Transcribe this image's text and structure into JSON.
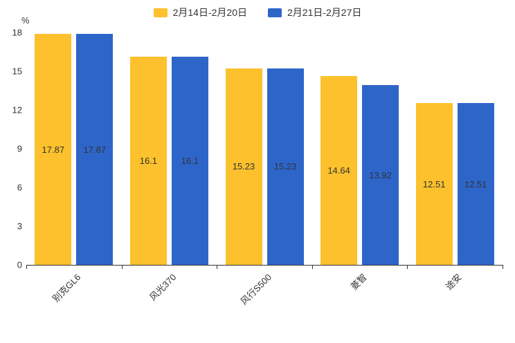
{
  "chart_data": {
    "type": "bar",
    "title": "",
    "xlabel": "",
    "ylabel": "%",
    "ylim": [
      0,
      18
    ],
    "yticks": [
      0,
      3,
      6,
      9,
      12,
      15,
      18
    ],
    "grid": false,
    "legend_position": "top",
    "categories": [
      "别克GL6",
      "风光370",
      "风行S500",
      "菱智",
      "途安"
    ],
    "series": [
      {
        "name": "2月14日-2月20日",
        "color": "#FCC12C",
        "values": [
          17.87,
          16.1,
          15.23,
          14.64,
          12.51
        ]
      },
      {
        "name": "2月21日-2月27日",
        "color": "#2E65C9",
        "values": [
          17.87,
          16.1,
          15.23,
          13.92,
          12.51
        ]
      }
    ]
  }
}
